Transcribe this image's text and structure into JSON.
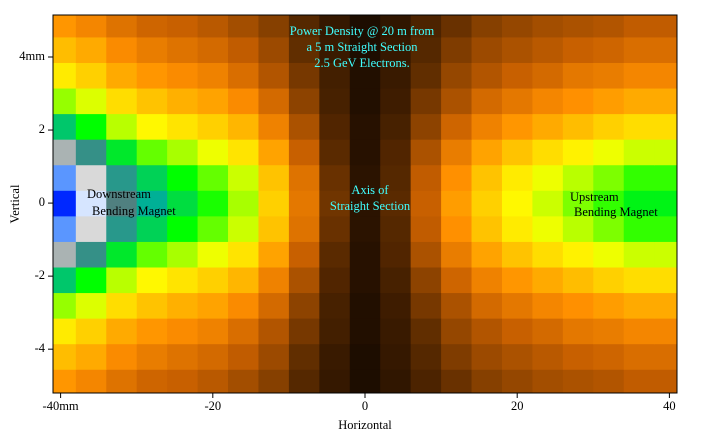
{
  "chart_data": {
    "type": "heatmap",
    "title": [
      "Power Density @ 20 m from",
      "a 5 m Straight Section",
      "2.5 GeV Electrons."
    ],
    "xlabel": "Horizontal",
    "ylabel": "Vertical",
    "annotations": [
      [
        "Downstream",
        "Bending Magnet"
      ],
      [
        "Axis of",
        "Straight Section"
      ],
      [
        "Upstream",
        "Bending Magnet"
      ]
    ],
    "xlim": [
      -41,
      41
    ],
    "ylim": [
      -5.2,
      5.15
    ],
    "xticks": [
      {
        "value": -40,
        "label": "-40mm"
      },
      -20,
      0,
      20,
      40
    ],
    "yticks": [
      -4,
      -2,
      0,
      2,
      {
        "value": 4,
        "label": "4mm"
      }
    ],
    "x": [
      -40,
      -36,
      -32,
      -28,
      -24,
      -20,
      -16,
      -12,
      -8,
      -4,
      0,
      4,
      8,
      12,
      16,
      20,
      24,
      28,
      32,
      36,
      40
    ],
    "y": [
      -4.9,
      -4.2,
      -3.5,
      -2.8,
      -2.1,
      -1.4,
      -0.7,
      0,
      0.7,
      1.4,
      2.1,
      2.8,
      3.5,
      4.2,
      4.9
    ],
    "z": [
      [
        0.41,
        0.38,
        0.34,
        0.31,
        0.3,
        0.28,
        0.25,
        0.21,
        0.14,
        0.07,
        0.02,
        0.06,
        0.12,
        0.17,
        0.21,
        0.23,
        0.25,
        0.26,
        0.27,
        0.29,
        0.29
      ],
      [
        0.47,
        0.44,
        0.39,
        0.36,
        0.34,
        0.32,
        0.29,
        0.24,
        0.16,
        0.08,
        0.02,
        0.07,
        0.14,
        0.2,
        0.24,
        0.26,
        0.28,
        0.3,
        0.31,
        0.33,
        0.33
      ],
      [
        0.54,
        0.5,
        0.44,
        0.41,
        0.39,
        0.37,
        0.33,
        0.27,
        0.19,
        0.1,
        0.03,
        0.08,
        0.16,
        0.23,
        0.27,
        0.3,
        0.32,
        0.35,
        0.36,
        0.38,
        0.38
      ],
      [
        0.63,
        0.59,
        0.52,
        0.48,
        0.45,
        0.43,
        0.39,
        0.32,
        0.22,
        0.11,
        0.03,
        0.09,
        0.19,
        0.26,
        0.32,
        0.35,
        0.38,
        0.4,
        0.42,
        0.44,
        0.44
      ],
      [
        0.74,
        0.69,
        0.61,
        0.56,
        0.53,
        0.5,
        0.46,
        0.37,
        0.26,
        0.13,
        0.04,
        0.11,
        0.22,
        0.31,
        0.37,
        0.41,
        0.44,
        0.47,
        0.5,
        0.52,
        0.52
      ],
      [
        0.86,
        0.8,
        0.71,
        0.65,
        0.62,
        0.58,
        0.53,
        0.43,
        0.3,
        0.15,
        0.04,
        0.13,
        0.26,
        0.36,
        0.43,
        0.48,
        0.52,
        0.55,
        0.58,
        0.6,
        0.6
      ],
      [
        0.96,
        0.89,
        0.79,
        0.73,
        0.69,
        0.65,
        0.6,
        0.48,
        0.34,
        0.17,
        0.05,
        0.14,
        0.29,
        0.4,
        0.48,
        0.54,
        0.58,
        0.61,
        0.64,
        0.67,
        0.67
      ],
      [
        1.0,
        0.93,
        0.82,
        0.76,
        0.72,
        0.68,
        0.62,
        0.5,
        0.35,
        0.18,
        0.05,
        0.15,
        0.3,
        0.42,
        0.5,
        0.56,
        0.6,
        0.64,
        0.67,
        0.7,
        0.7
      ],
      [
        0.96,
        0.89,
        0.79,
        0.73,
        0.69,
        0.65,
        0.6,
        0.48,
        0.34,
        0.17,
        0.05,
        0.14,
        0.29,
        0.4,
        0.48,
        0.54,
        0.58,
        0.61,
        0.64,
        0.67,
        0.67
      ],
      [
        0.86,
        0.8,
        0.71,
        0.65,
        0.62,
        0.58,
        0.53,
        0.43,
        0.3,
        0.15,
        0.04,
        0.13,
        0.26,
        0.36,
        0.43,
        0.48,
        0.52,
        0.55,
        0.58,
        0.6,
        0.6
      ],
      [
        0.74,
        0.69,
        0.61,
        0.56,
        0.53,
        0.5,
        0.46,
        0.37,
        0.26,
        0.13,
        0.04,
        0.11,
        0.22,
        0.31,
        0.37,
        0.41,
        0.44,
        0.47,
        0.5,
        0.52,
        0.52
      ],
      [
        0.63,
        0.59,
        0.52,
        0.48,
        0.45,
        0.43,
        0.39,
        0.32,
        0.22,
        0.11,
        0.03,
        0.09,
        0.19,
        0.26,
        0.32,
        0.35,
        0.38,
        0.4,
        0.42,
        0.44,
        0.44
      ],
      [
        0.54,
        0.5,
        0.44,
        0.41,
        0.39,
        0.37,
        0.33,
        0.27,
        0.19,
        0.1,
        0.03,
        0.08,
        0.16,
        0.23,
        0.27,
        0.3,
        0.32,
        0.35,
        0.36,
        0.38,
        0.38
      ],
      [
        0.47,
        0.44,
        0.39,
        0.36,
        0.34,
        0.32,
        0.29,
        0.24,
        0.16,
        0.08,
        0.02,
        0.07,
        0.14,
        0.2,
        0.24,
        0.26,
        0.28,
        0.3,
        0.31,
        0.33,
        0.33
      ],
      [
        0.41,
        0.38,
        0.34,
        0.31,
        0.3,
        0.28,
        0.25,
        0.21,
        0.14,
        0.07,
        0.02,
        0.06,
        0.12,
        0.17,
        0.21,
        0.23,
        0.25,
        0.26,
        0.27,
        0.29,
        0.29
      ]
    ]
  }
}
